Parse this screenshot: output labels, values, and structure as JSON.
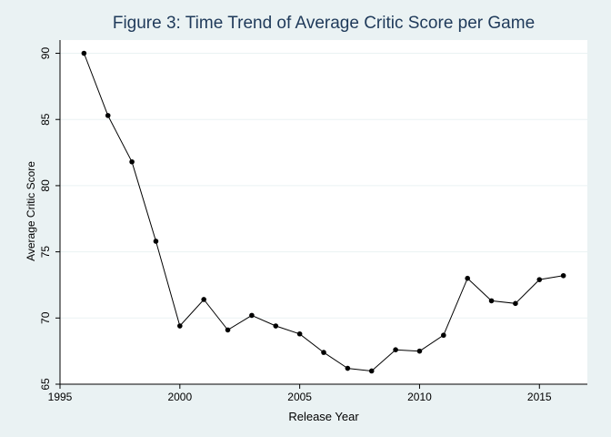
{
  "chart_data": {
    "type": "line",
    "title": "Figure 3: Time Trend of Average Critic Score per Game",
    "xlabel": "Release Year",
    "ylabel": "Average Critic Score",
    "xlim": [
      1995,
      2017
    ],
    "ylim": [
      65,
      91
    ],
    "xticks": [
      1995,
      2000,
      2005,
      2010,
      2015
    ],
    "yticks": [
      65,
      70,
      75,
      80,
      85,
      90
    ],
    "grid": "horizontal",
    "series": [
      {
        "x": [
          1996,
          1997,
          1998,
          1999,
          2000,
          2001,
          2002,
          2003,
          2004,
          2005,
          2006,
          2007,
          2008,
          2009,
          2010,
          2011,
          2012,
          2013,
          2014,
          2015,
          2016
        ],
        "y": [
          90.0,
          85.3,
          81.8,
          75.8,
          69.4,
          71.4,
          69.1,
          70.2,
          69.4,
          68.8,
          67.4,
          66.2,
          66.0,
          67.6,
          67.5,
          68.7,
          73.0,
          71.3,
          71.1,
          72.9,
          73.2
        ]
      }
    ]
  },
  "colors": {
    "title": "#1f3a5a",
    "line": "#000000",
    "marker": "#000000",
    "grid": "#eaf2f3",
    "axis": "#000000"
  }
}
